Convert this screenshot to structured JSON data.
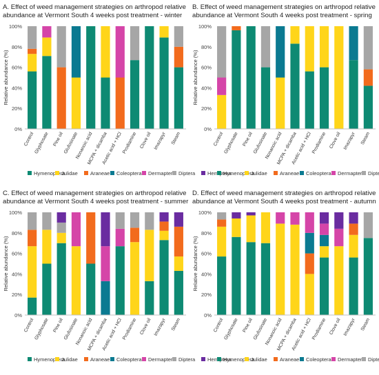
{
  "legend": {
    "items": [
      {
        "name": "Hymenoptera",
        "color": "#0E8A73"
      },
      {
        "name": "Julidae",
        "color": "#FFD51A"
      },
      {
        "name": "Araneae",
        "color": "#F26B1D"
      },
      {
        "name": "Coleoptera",
        "color": "#0B7A91"
      },
      {
        "name": "Dermaptera",
        "color": "#D545A8"
      },
      {
        "name": "Diptera",
        "color": "#A6A6A6"
      },
      {
        "name": "Hemiptera",
        "color": "#6A2CA0"
      }
    ]
  },
  "chart_data": [
    {
      "type": "bar",
      "stacked": true,
      "title_line1": "A. Effect of weed management strategies on arthropod relative",
      "title_line2": "abundance at Vermont South 4 weeks post treatment - winter",
      "xlabel": "",
      "ylabel": "Relative abundance (%)",
      "ylim": [
        0,
        100
      ],
      "yticks": [
        "0%",
        "20%",
        "40%",
        "60%",
        "80%",
        "100%"
      ],
      "grid": false,
      "legend_position": "bottom",
      "categories": [
        "Control",
        "Glyphosate",
        "Pine oil",
        "Glufosinate",
        "Nonanoic acid",
        "MCPA + dicamba",
        "Acetic acid + HCl",
        "Prodiamine",
        "Clove oil",
        "Imazapyr",
        "Steam"
      ],
      "series": [
        {
          "name": "Hymenoptera",
          "values": [
            56,
            71,
            0,
            0,
            100,
            50,
            0,
            67,
            100,
            89,
            60
          ]
        },
        {
          "name": "Julidae",
          "values": [
            17,
            18,
            0,
            50,
            0,
            50,
            0,
            0,
            0,
            11,
            0
          ]
        },
        {
          "name": "Araneae",
          "values": [
            5,
            0,
            60,
            0,
            0,
            0,
            50,
            0,
            0,
            0,
            20
          ]
        },
        {
          "name": "Coleoptera",
          "values": [
            0,
            0,
            0,
            50,
            0,
            0,
            0,
            0,
            0,
            0,
            0
          ]
        },
        {
          "name": "Dermaptera",
          "values": [
            0,
            11,
            0,
            0,
            0,
            0,
            50,
            0,
            0,
            0,
            0
          ]
        },
        {
          "name": "Diptera",
          "values": [
            22,
            0,
            40,
            0,
            0,
            0,
            0,
            33,
            0,
            0,
            20
          ]
        },
        {
          "name": "Hemiptera",
          "values": [
            0,
            0,
            0,
            0,
            0,
            0,
            0,
            0,
            0,
            0,
            0
          ]
        }
      ]
    },
    {
      "type": "bar",
      "stacked": true,
      "title_line1": "B. Effect of weed management strategies on arthropod relative",
      "title_line2": "abundance at Vermont South 4 weeks post treatment - spring",
      "xlabel": "",
      "ylabel": "Relative abundance (%)",
      "ylim": [
        0,
        100
      ],
      "yticks": [
        "0%",
        "20%",
        "40%",
        "60%",
        "80%",
        "100%"
      ],
      "grid": false,
      "legend_position": "bottom",
      "categories": [
        "Control",
        "Glyphosate",
        "Pine oil",
        "Glufosinate",
        "Nonanoic acid",
        "MCPA + dicamba",
        "Acetic acid + HCl",
        "Prodiamine",
        "Clove oil",
        "Imazapyr",
        "Steam"
      ],
      "series": [
        {
          "name": "Hymenoptera",
          "values": [
            0,
            96,
            100,
            60,
            0,
            83,
            56,
            60,
            0,
            67,
            42
          ]
        },
        {
          "name": "Julidae",
          "values": [
            33,
            0,
            0,
            0,
            50,
            17,
            44,
            40,
            100,
            0,
            0
          ]
        },
        {
          "name": "Araneae",
          "values": [
            0,
            4,
            0,
            0,
            0,
            0,
            0,
            0,
            0,
            0,
            16
          ]
        },
        {
          "name": "Coleoptera",
          "values": [
            0,
            0,
            0,
            0,
            50,
            0,
            0,
            0,
            0,
            33,
            0
          ]
        },
        {
          "name": "Dermaptera",
          "values": [
            17,
            0,
            0,
            0,
            0,
            0,
            0,
            0,
            0,
            0,
            0
          ]
        },
        {
          "name": "Diptera",
          "values": [
            50,
            0,
            0,
            40,
            0,
            0,
            0,
            0,
            0,
            0,
            42
          ]
        },
        {
          "name": "Hemiptera",
          "values": [
            0,
            0,
            0,
            0,
            0,
            0,
            0,
            0,
            0,
            0,
            0
          ]
        }
      ]
    },
    {
      "type": "bar",
      "stacked": true,
      "title_line1": "C. Effect of weed management strategies on arthropod relative",
      "title_line2": "abundance at Vermont South 4 weeks post treatment - summer",
      "xlabel": "",
      "ylabel": "Relative abundance (%)",
      "ylim": [
        0,
        100
      ],
      "yticks": [
        "0%",
        "20%",
        "40%",
        "60%",
        "80%",
        "100%"
      ],
      "grid": false,
      "legend_position": "bottom",
      "categories": [
        "Control",
        "Glyphosate",
        "Pine oil",
        "Glufosinate",
        "Nonanoic acid",
        "MCPA + dicamba",
        "Acetic acid + HCl",
        "Prodiamine",
        "Clove oil",
        "Imazapyr",
        "Steam"
      ],
      "series": [
        {
          "name": "Hymenoptera",
          "values": [
            17,
            50,
            70,
            0,
            50,
            0,
            67,
            0,
            33,
            73,
            43
          ]
        },
        {
          "name": "Julidae",
          "values": [
            50,
            33,
            10,
            67,
            0,
            0,
            0,
            71,
            50,
            9,
            14
          ]
        },
        {
          "name": "Araneae",
          "values": [
            16,
            0,
            0,
            0,
            50,
            0,
            0,
            14,
            0,
            9,
            29
          ]
        },
        {
          "name": "Coleoptera",
          "values": [
            0,
            0,
            0,
            0,
            0,
            33,
            0,
            0,
            0,
            0,
            0
          ]
        },
        {
          "name": "Dermaptera",
          "values": [
            0,
            0,
            0,
            33,
            0,
            34,
            17,
            0,
            0,
            0,
            0
          ]
        },
        {
          "name": "Diptera",
          "values": [
            17,
            17,
            10,
            0,
            0,
            0,
            16,
            15,
            17,
            0,
            0
          ]
        },
        {
          "name": "Hemiptera",
          "values": [
            0,
            0,
            10,
            0,
            0,
            33,
            0,
            0,
            0,
            9,
            14
          ]
        }
      ]
    },
    {
      "type": "bar",
      "stacked": true,
      "title_line1": "D. Effect of weed management strategies on arthropod relative",
      "title_line2": "abundance at Vermont South 4 weeks post treatment - autumn",
      "xlabel": "",
      "ylabel": "Relative abundance (%)",
      "ylim": [
        0,
        100
      ],
      "yticks": [
        "0%",
        "20%",
        "40%",
        "60%",
        "80%",
        "100%"
      ],
      "grid": false,
      "legend_position": "bottom",
      "categories": [
        "Control",
        "Glyphosate",
        "Pine oil",
        "Glufosinate",
        "Nonanoic acid",
        "MCPA + dicamba",
        "Acetic acid + HCl",
        "Prodiamine",
        "Clove oil",
        "Imazapyr",
        "Steam"
      ],
      "series": [
        {
          "name": "Hymenoptera",
          "values": [
            57,
            76,
            71,
            70,
            0,
            0,
            0,
            56,
            0,
            56,
            75
          ]
        },
        {
          "name": "Julidae",
          "values": [
            29,
            18,
            26,
            30,
            89,
            88,
            40,
            11,
            67,
            22,
            0
          ]
        },
        {
          "name": "Araneae",
          "values": [
            7,
            0,
            0,
            0,
            0,
            0,
            20,
            0,
            0,
            11,
            0
          ]
        },
        {
          "name": "Coleoptera",
          "values": [
            0,
            0,
            0,
            0,
            0,
            0,
            20,
            11,
            0,
            0,
            0
          ]
        },
        {
          "name": "Dermaptera",
          "values": [
            0,
            0,
            0,
            0,
            11,
            12,
            20,
            11,
            17,
            0,
            0
          ]
        },
        {
          "name": "Diptera",
          "values": [
            7,
            0,
            0,
            0,
            0,
            0,
            0,
            0,
            0,
            0,
            25
          ]
        },
        {
          "name": "Hemiptera",
          "values": [
            0,
            6,
            3,
            0,
            0,
            0,
            0,
            11,
            16,
            11,
            0
          ]
        }
      ]
    }
  ]
}
